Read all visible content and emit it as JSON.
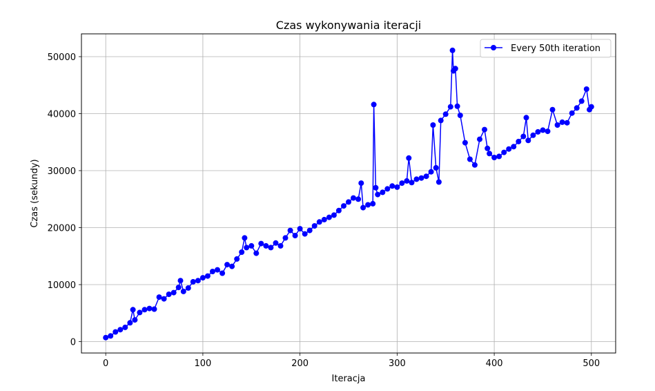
{
  "chart_data": {
    "type": "line",
    "title": "Czas wykonywania iteracji",
    "xlabel": "Iteracja",
    "ylabel": "Czas (sekundy)",
    "xlim": [
      -25,
      525
    ],
    "ylim": [
      -2000,
      54000
    ],
    "xticks": [
      0,
      100,
      200,
      300,
      400,
      500
    ],
    "yticks": [
      0,
      10000,
      20000,
      30000,
      40000,
      50000
    ],
    "xtick_labels": [
      "0",
      "100",
      "200",
      "300",
      "400",
      "500"
    ],
    "ytick_labels": [
      "0",
      "10000",
      "20000",
      "30000",
      "40000",
      "50000"
    ],
    "grid": true,
    "legend_position": "top-right",
    "series": [
      {
        "name": "Every 50th iteration",
        "color": "#0000ff",
        "marker": "circle",
        "x": [
          0,
          5,
          10,
          15,
          20,
          25,
          28,
          30,
          35,
          40,
          45,
          50,
          55,
          60,
          65,
          70,
          75,
          77,
          80,
          85,
          90,
          95,
          100,
          105,
          110,
          115,
          120,
          125,
          130,
          135,
          140,
          143,
          145,
          150,
          155,
          160,
          165,
          170,
          175,
          180,
          185,
          190,
          195,
          200,
          205,
          210,
          215,
          220,
          225,
          230,
          235,
          240,
          245,
          250,
          255,
          260,
          263,
          265,
          270,
          275,
          276,
          278,
          280,
          285,
          290,
          295,
          300,
          305,
          310,
          312,
          315,
          320,
          325,
          330,
          335,
          337,
          340,
          343,
          345,
          350,
          355,
          357,
          358,
          360,
          362,
          365,
          370,
          375,
          380,
          385,
          390,
          393,
          395,
          400,
          405,
          410,
          415,
          420,
          425,
          430,
          433,
          435,
          440,
          445,
          450,
          455,
          460,
          465,
          470,
          475,
          480,
          485,
          490,
          495,
          498,
          500
        ],
        "y": [
          700,
          1000,
          1700,
          2100,
          2500,
          3300,
          5600,
          3800,
          5100,
          5600,
          5800,
          5700,
          7800,
          7500,
          8300,
          8600,
          9500,
          10700,
          8800,
          9400,
          10500,
          10700,
          11200,
          11500,
          12300,
          12600,
          12000,
          13500,
          13200,
          14500,
          15700,
          18200,
          16500,
          16800,
          15500,
          17200,
          16800,
          16500,
          17300,
          16800,
          18200,
          19500,
          18600,
          19800,
          18900,
          19500,
          20300,
          21000,
          21400,
          21800,
          22200,
          23000,
          23800,
          24500,
          25200,
          25000,
          27800,
          23500,
          24000,
          24200,
          41600,
          27000,
          25800,
          26200,
          26800,
          27300,
          27100,
          27800,
          28200,
          32200,
          27900,
          28500,
          28700,
          29000,
          29800,
          38000,
          30500,
          28000,
          38800,
          39900,
          41200,
          51100,
          47500,
          47900,
          41300,
          39700,
          34900,
          32000,
          31000,
          35500,
          37200,
          33900,
          33000,
          32300,
          32500,
          33200,
          33800,
          34200,
          35100,
          36000,
          39300,
          35300,
          36200,
          36800,
          37100,
          36900,
          40700,
          38000,
          38500,
          38400,
          40100,
          41000,
          42200,
          44300,
          40700,
          41200
        ]
      }
    ]
  }
}
